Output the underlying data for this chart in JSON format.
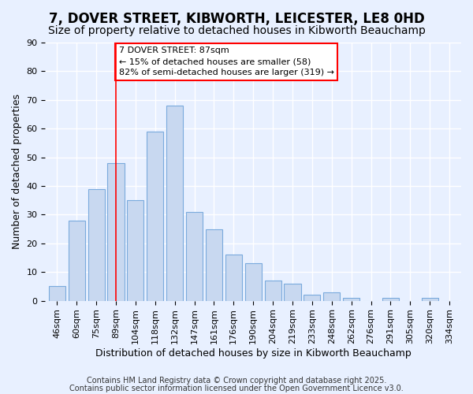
{
  "title": "7, DOVER STREET, KIBWORTH, LEICESTER, LE8 0HD",
  "subtitle": "Size of property relative to detached houses in Kibworth Beauchamp",
  "xlabel": "Distribution of detached houses by size in Kibworth Beauchamp",
  "ylabel": "Number of detached properties",
  "bar_labels": [
    "46sqm",
    "60sqm",
    "75sqm",
    "89sqm",
    "104sqm",
    "118sqm",
    "132sqm",
    "147sqm",
    "161sqm",
    "176sqm",
    "190sqm",
    "204sqm",
    "219sqm",
    "233sqm",
    "248sqm",
    "262sqm",
    "276sqm",
    "291sqm",
    "305sqm",
    "320sqm",
    "334sqm"
  ],
  "bar_values": [
    5,
    28,
    39,
    48,
    35,
    59,
    68,
    31,
    25,
    16,
    13,
    7,
    6,
    2,
    3,
    1,
    0,
    1,
    0,
    1,
    0
  ],
  "bar_color": "#c8d8f0",
  "bar_edge_color": "#7aaadd",
  "vline_x": 3,
  "vline_color": "red",
  "annotation_title": "7 DOVER STREET: 87sqm",
  "annotation_line1": "← 15% of detached houses are smaller (58)",
  "annotation_line2": "82% of semi-detached houses are larger (319) →",
  "annotation_box_color": "white",
  "annotation_box_edge": "red",
  "ylim": [
    0,
    90
  ],
  "yticks": [
    0,
    10,
    20,
    30,
    40,
    50,
    60,
    70,
    80,
    90
  ],
  "bg_color": "#e8f0ff",
  "footer1": "Contains HM Land Registry data © Crown copyright and database right 2025.",
  "footer2": "Contains public sector information licensed under the Open Government Licence v3.0.",
  "title_fontsize": 12,
  "subtitle_fontsize": 10,
  "tick_fontsize": 8,
  "xlabel_fontsize": 9,
  "ylabel_fontsize": 9,
  "annotation_text_fontsize": 8,
  "footer_fontsize": 7
}
